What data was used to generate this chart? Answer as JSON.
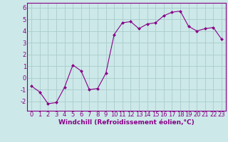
{
  "x": [
    0,
    1,
    2,
    3,
    4,
    5,
    6,
    7,
    8,
    9,
    10,
    11,
    12,
    13,
    14,
    15,
    16,
    17,
    18,
    19,
    20,
    21,
    22,
    23
  ],
  "y": [
    -0.7,
    -1.2,
    -2.2,
    -2.1,
    -0.8,
    1.1,
    0.6,
    -1.0,
    -0.9,
    0.4,
    3.7,
    4.7,
    4.8,
    4.2,
    4.6,
    4.7,
    5.3,
    5.6,
    5.7,
    4.4,
    4.0,
    4.2,
    4.3,
    3.3
  ],
  "line_color": "#880088",
  "marker": "D",
  "marker_size": 2.0,
  "bg_color": "#cce8e8",
  "grid_color": "#aacccc",
  "xlabel": "Windchill (Refroidissement éolien,°C)",
  "ylim": [
    -2.8,
    6.4
  ],
  "xlim": [
    -0.5,
    23.5
  ],
  "yticks": [
    -2,
    -1,
    0,
    1,
    2,
    3,
    4,
    5,
    6
  ],
  "xticks": [
    0,
    1,
    2,
    3,
    4,
    5,
    6,
    7,
    8,
    9,
    10,
    11,
    12,
    13,
    14,
    15,
    16,
    17,
    18,
    19,
    20,
    21,
    22,
    23
  ],
  "tick_color": "#880088",
  "label_color": "#880088",
  "spine_color": "#880088",
  "xlabel_fontsize": 6.5,
  "tick_fontsize": 6.0,
  "line_width": 0.8
}
